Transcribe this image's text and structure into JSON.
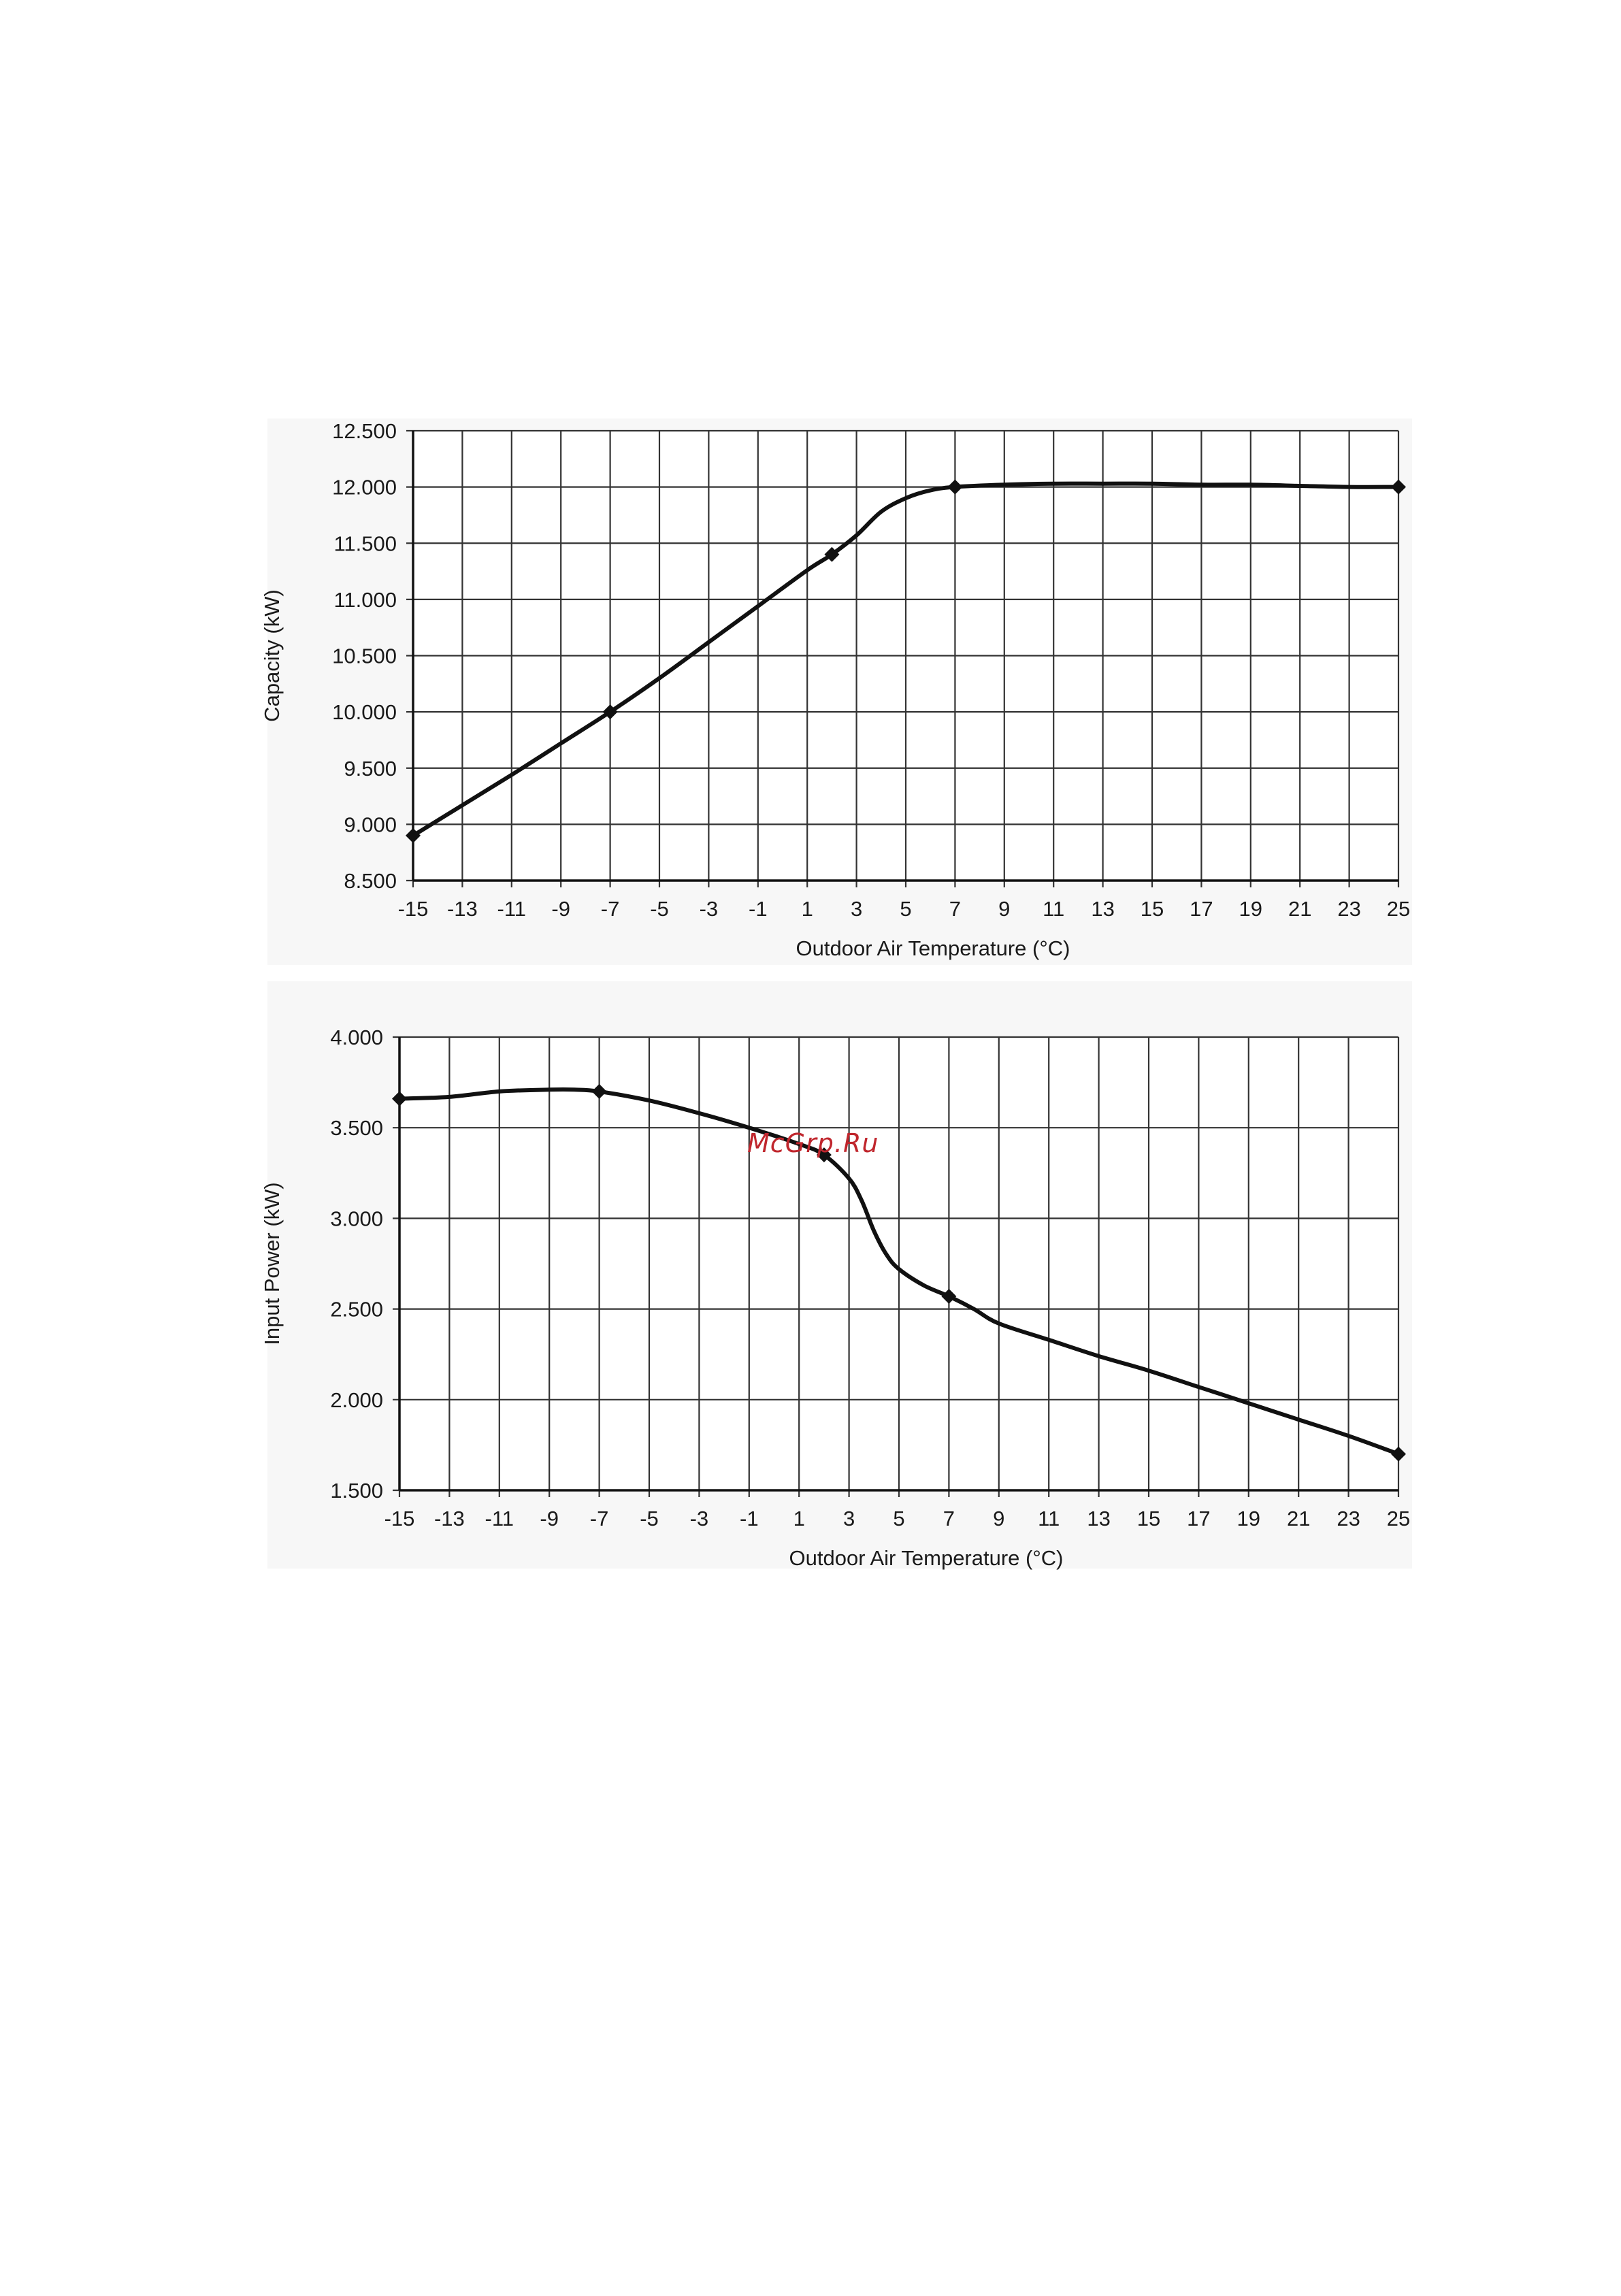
{
  "watermark": "McGrp.Ru",
  "chart_data": [
    {
      "type": "line",
      "ylabel": "Capacity (kW)",
      "xlabel": "Outdoor  Air Temperature (°C)",
      "xlim": [
        -15,
        25
      ],
      "ylim": [
        8.5,
        12.5
      ],
      "x_ticks": [
        -15,
        -13,
        -11,
        -9,
        -7,
        -5,
        -3,
        -1,
        1,
        3,
        5,
        7,
        9,
        11,
        13,
        15,
        17,
        19,
        21,
        23,
        25
      ],
      "y_ticks": [
        "8.500",
        "9.000",
        "9.500",
        "10.000",
        "10.500",
        "11.000",
        "11.500",
        "12.000",
        "12.500"
      ],
      "grid": true,
      "series": [
        {
          "x": [
            -15,
            -13,
            -11,
            -9,
            -7,
            -5,
            -3,
            -1,
            1,
            2,
            3,
            4,
            5,
            6,
            7,
            9,
            11,
            13,
            15,
            17,
            19,
            21,
            23,
            25
          ],
          "y": [
            8.9,
            9.17,
            9.44,
            9.72,
            10.0,
            10.3,
            10.62,
            10.94,
            11.26,
            11.4,
            11.57,
            11.78,
            11.9,
            11.97,
            12.0,
            12.02,
            12.03,
            12.03,
            12.03,
            12.02,
            12.02,
            12.01,
            12.0,
            12.0
          ]
        }
      ],
      "markers": [
        {
          "x": -15,
          "y": 8.9
        },
        {
          "x": -7,
          "y": 10.0
        },
        {
          "x": 2,
          "y": 11.4
        },
        {
          "x": 7,
          "y": 12.0
        },
        {
          "x": 25,
          "y": 12.0
        }
      ]
    },
    {
      "type": "line",
      "ylabel": "Input Power (kW)",
      "xlabel": "Outdoor  Air Temperature (°C)",
      "xlim": [
        -15,
        25
      ],
      "ylim": [
        1.5,
        4.0
      ],
      "x_ticks": [
        -15,
        -13,
        -11,
        -9,
        -7,
        -5,
        -3,
        -1,
        1,
        3,
        5,
        7,
        9,
        11,
        13,
        15,
        17,
        19,
        21,
        23,
        25
      ],
      "y_ticks": [
        "1.500",
        "2.000",
        "2.500",
        "3.000",
        "3.500",
        "4.000"
      ],
      "grid": true,
      "series": [
        {
          "x": [
            -15,
            -13,
            -11,
            -9,
            -8,
            -7,
            -5,
            -3,
            -1,
            1,
            2,
            3,
            3.5,
            4,
            4.5,
            5,
            6,
            7,
            8,
            9,
            11,
            13,
            15,
            17,
            19,
            21,
            23,
            25
          ],
          "y": [
            3.66,
            3.67,
            3.7,
            3.71,
            3.71,
            3.7,
            3.65,
            3.58,
            3.5,
            3.41,
            3.35,
            3.22,
            3.1,
            2.93,
            2.8,
            2.72,
            2.63,
            2.57,
            2.5,
            2.42,
            2.33,
            2.24,
            2.16,
            2.07,
            1.98,
            1.89,
            1.8,
            1.7
          ]
        }
      ],
      "markers": [
        {
          "x": -15,
          "y": 3.66
        },
        {
          "x": -7,
          "y": 3.7
        },
        {
          "x": 2,
          "y": 3.35
        },
        {
          "x": 7,
          "y": 2.57
        },
        {
          "x": 25,
          "y": 1.7
        }
      ]
    }
  ]
}
